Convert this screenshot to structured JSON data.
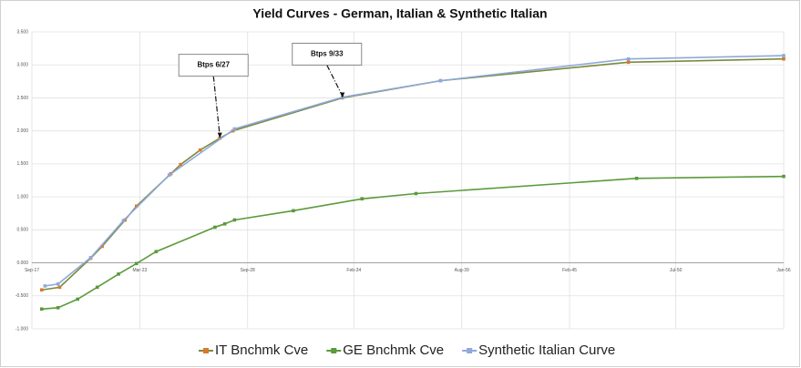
{
  "chart_data": {
    "type": "line",
    "title": "Yield Curves - German, Italian & Synthetic Italian",
    "xlim": [
      "2017-09",
      "2056-01"
    ],
    "xticks": [
      {
        "value": "2017-09",
        "label": "Sep-17"
      },
      {
        "value": "2023-03",
        "label": "Mar-23"
      },
      {
        "value": "2028-09",
        "label": "Sep-28"
      },
      {
        "value": "2034-02",
        "label": "Feb-34"
      },
      {
        "value": "2039-08",
        "label": "Aug-39"
      },
      {
        "value": "2045-02",
        "label": "Feb-45"
      },
      {
        "value": "2050-07",
        "label": "Jul-50"
      },
      {
        "value": "2056-01",
        "label": "Jan-56"
      }
    ],
    "ylim": [
      -1.0,
      3.5
    ],
    "yticks": [
      {
        "value": -1.0,
        "label": "-1.000"
      },
      {
        "value": -0.5,
        "label": "-0.500"
      },
      {
        "value": 0,
        "label": "0.000"
      },
      {
        "value": 0.5,
        "label": "0.500"
      },
      {
        "value": 1.0,
        "label": "1.000"
      },
      {
        "value": 1.5,
        "label": "1.500"
      },
      {
        "value": 2.0,
        "label": "2.000"
      },
      {
        "value": 2.5,
        "label": "2.500"
      },
      {
        "value": 3.0,
        "label": "3.000"
      },
      {
        "value": 3.5,
        "label": "3.500"
      }
    ],
    "grid": true,
    "legend": "bottom",
    "series": [
      {
        "name": "IT Bnchmk Cve",
        "color": "#d9792b",
        "line_color": "#7a8a3a",
        "x": [
          "2018-03",
          "2019-02",
          "2020-09",
          "2021-04",
          "2022-06",
          "2023-01",
          "2024-10",
          "2025-04",
          "2026-04",
          "2027-04",
          "2027-12",
          "2033-07",
          "2038-07",
          "2048-02",
          "2056-01"
        ],
        "values": [
          -0.41,
          -0.37,
          0.07,
          0.25,
          0.65,
          0.86,
          1.35,
          1.49,
          1.71,
          1.89,
          2.0,
          2.5,
          2.76,
          3.04,
          3.09
        ]
      },
      {
        "name": "GE Bnchmk Cve",
        "color": "#5a9a3c",
        "line_color": "#5a9a3c",
        "x": [
          "2018-03",
          "2019-01",
          "2020-01",
          "2021-01",
          "2022-02",
          "2023-01",
          "2024-01",
          "2027-01",
          "2027-07",
          "2028-01",
          "2031-01",
          "2034-07",
          "2037-04",
          "2048-07",
          "2056-01"
        ],
        "values": [
          -0.7,
          -0.68,
          -0.55,
          -0.37,
          -0.17,
          -0.01,
          0.17,
          0.54,
          0.59,
          0.65,
          0.79,
          0.97,
          1.05,
          1.28,
          1.31
        ]
      },
      {
        "name": "Synthetic Italian Curve",
        "color": "#8ea9db",
        "line_color": "#8ea9db",
        "x": [
          "2018-05",
          "2019-01",
          "2020-09",
          "2022-05",
          "2024-09",
          "2028-01",
          "2033-07",
          "2038-07",
          "2048-02",
          "2056-01"
        ],
        "values": [
          -0.35,
          -0.32,
          0.08,
          0.64,
          1.33,
          2.03,
          2.51,
          2.76,
          3.09,
          3.14
        ]
      }
    ],
    "annotations": [
      {
        "text": "Btps 6/27",
        "x": "2027-04",
        "y": 1.89
      },
      {
        "text": "Btps 9/33",
        "x": "2033-07",
        "y": 2.5
      }
    ]
  }
}
